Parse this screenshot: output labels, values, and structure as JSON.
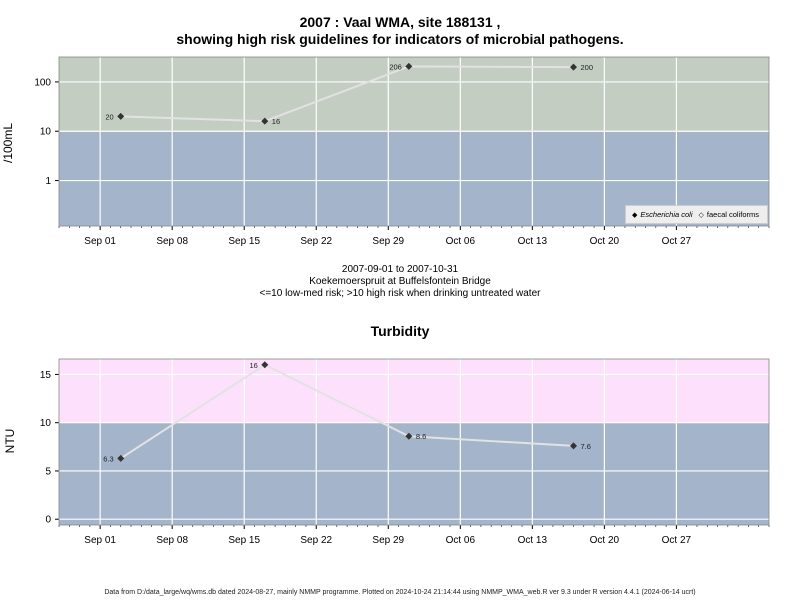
{
  "title_line1": "2007 : Vaal WMA, site 188131 ,",
  "title_line2": "showing high risk guidelines for indicators of microbial pathogens.",
  "caption": {
    "date_range": "2007-09-01 to 2007-10-31",
    "site_name": "Koekemoerspruit at Buffelsfontein Bridge",
    "risk_note": "<=10 low-med risk; >10 high risk when drinking untreated water"
  },
  "footer": "Data from D:/data_large/wq/wms.db dated 2024-08-27, mainly NMMP programme. Plotted on 2024-10-24 21:14:44 using NMMP_WMA_web.R ver 9.3 under R version 4.4.1 (2024-06-14 ucrt)",
  "colors": {
    "band_low": "#a3b4cb",
    "band_high_micro": "#c3cdc2",
    "band_high_turb": "#fde0fc",
    "line": "#e2e2e2",
    "point": "#333333"
  },
  "chart_data": [
    {
      "type": "line",
      "title": "",
      "xlabel": "",
      "ylabel": "/100mL",
      "yscale": "log",
      "ylim": [
        0.12,
        320
      ],
      "xlim": [
        "2007-08-28",
        "2007-11-05"
      ],
      "guideline": 10,
      "yticks": [
        {
          "v": 1,
          "label": "1"
        },
        {
          "v": 10,
          "label": "10"
        },
        {
          "v": 100,
          "label": "100"
        }
      ],
      "xticks": [
        {
          "date": "2007-09-01",
          "label": "Sep 01"
        },
        {
          "date": "2007-09-08",
          "label": "Sep 08"
        },
        {
          "date": "2007-09-15",
          "label": "Sep 15"
        },
        {
          "date": "2007-09-22",
          "label": "Sep 22"
        },
        {
          "date": "2007-09-29",
          "label": "Sep 29"
        },
        {
          "date": "2007-10-06",
          "label": "Oct 06"
        },
        {
          "date": "2007-10-13",
          "label": "Oct 13"
        },
        {
          "date": "2007-10-20",
          "label": "Oct 20"
        },
        {
          "date": "2007-10-27",
          "label": "Oct 27"
        }
      ],
      "series": [
        {
          "name": "Escherichia coli",
          "points": [
            {
              "date": "2007-09-03",
              "value": 20,
              "label": "20",
              "label_side": "left"
            },
            {
              "date": "2007-09-17",
              "value": 16,
              "label": "16",
              "label_side": "right"
            },
            {
              "date": "2007-10-01",
              "value": 206,
              "label": "206",
              "label_side": "left"
            },
            {
              "date": "2007-10-17",
              "value": 200,
              "label": "200",
              "label_side": "right"
            }
          ]
        }
      ],
      "legend": {
        "placement": "bottom-right",
        "entries": [
          {
            "label": "Escherichia coli",
            "marker": "◆",
            "italic": true
          },
          {
            "label": "faecal coliforms",
            "marker": "◇",
            "italic": false
          }
        ]
      }
    },
    {
      "type": "line",
      "title": "Turbidity",
      "xlabel": "",
      "ylabel": "NTU",
      "yscale": "linear",
      "ylim": [
        -0.6,
        16.6
      ],
      "xlim": [
        "2007-08-28",
        "2007-11-05"
      ],
      "guideline": 10,
      "yticks": [
        {
          "v": 0,
          "label": "0"
        },
        {
          "v": 5,
          "label": "5"
        },
        {
          "v": 10,
          "label": "10"
        },
        {
          "v": 15,
          "label": "15"
        }
      ],
      "xticks": [
        {
          "date": "2007-09-01",
          "label": "Sep 01"
        },
        {
          "date": "2007-09-08",
          "label": "Sep 08"
        },
        {
          "date": "2007-09-15",
          "label": "Sep 15"
        },
        {
          "date": "2007-09-22",
          "label": "Sep 22"
        },
        {
          "date": "2007-09-29",
          "label": "Sep 29"
        },
        {
          "date": "2007-10-06",
          "label": "Oct 06"
        },
        {
          "date": "2007-10-13",
          "label": "Oct 13"
        },
        {
          "date": "2007-10-20",
          "label": "Oct 20"
        },
        {
          "date": "2007-10-27",
          "label": "Oct 27"
        }
      ],
      "series": [
        {
          "points": [
            {
              "date": "2007-09-03",
              "value": 6.3,
              "label": "6.3",
              "label_side": "left"
            },
            {
              "date": "2007-09-17",
              "value": 16,
              "label": "16",
              "label_side": "left"
            },
            {
              "date": "2007-10-01",
              "value": 8.6,
              "label": "8.6",
              "label_side": "right"
            },
            {
              "date": "2007-10-17",
              "value": 7.6,
              "label": "7.6",
              "label_side": "right"
            }
          ]
        }
      ]
    }
  ]
}
